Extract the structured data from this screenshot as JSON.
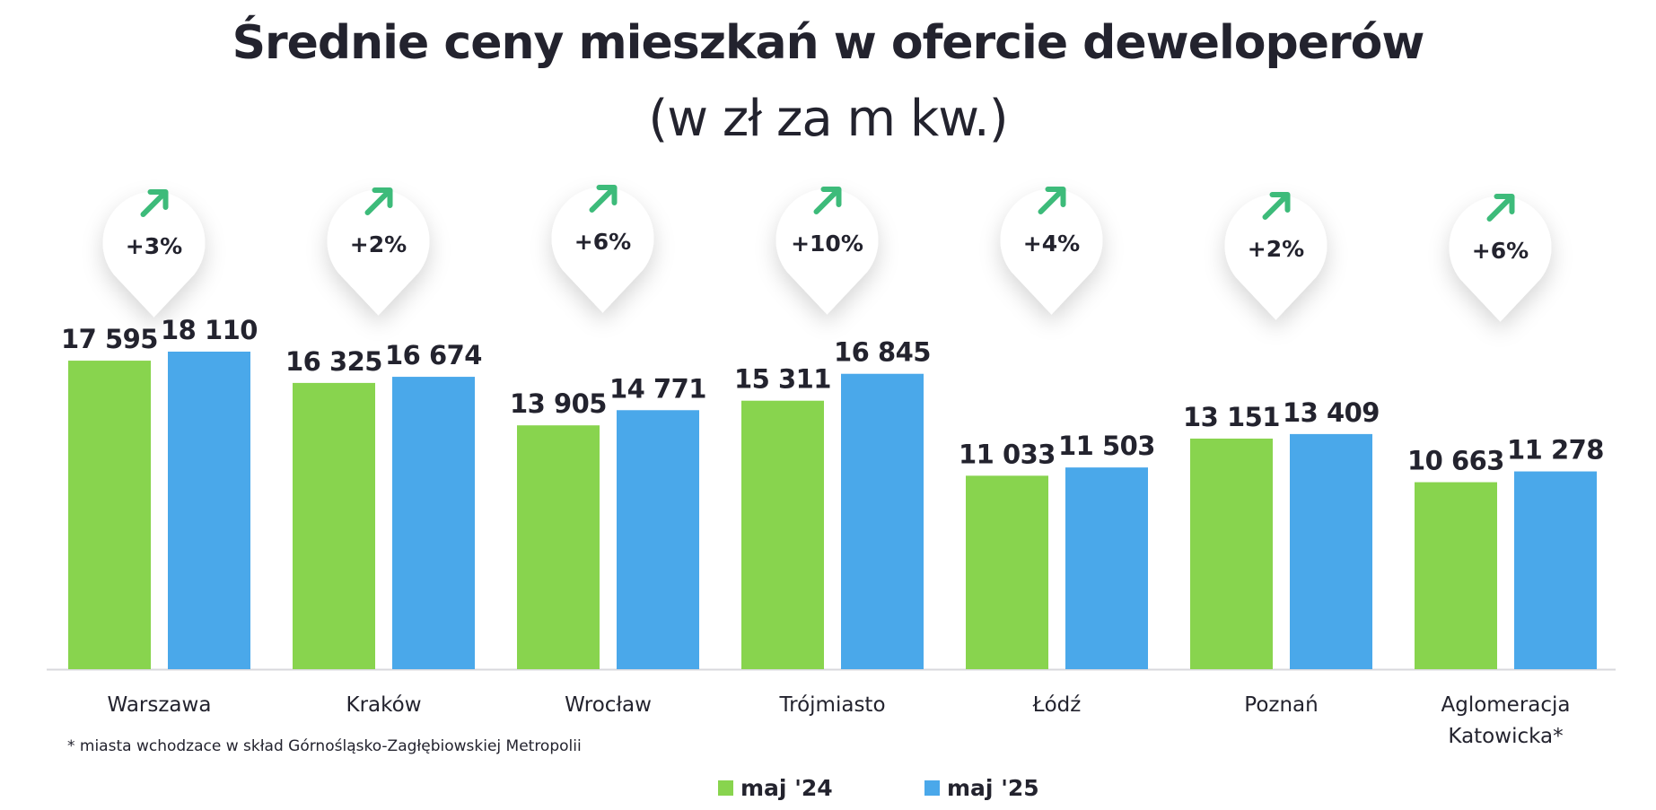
{
  "chart_data": {
    "type": "bar",
    "title": "Średnie ceny mieszkań w ofercie deweloperów",
    "subtitle": "(w zł za m kw.)",
    "categories": [
      "Warszawa",
      "Kraków",
      "Wrocław",
      "Trójmiasto",
      "Łódź",
      "Poznań",
      "Aglomeracja Katowicka*"
    ],
    "series": [
      {
        "name": "maj '24",
        "color": "#88d44e",
        "values": [
          17595,
          16325,
          13905,
          15311,
          11033,
          13151,
          10663
        ],
        "labels": [
          "17 595",
          "16 325",
          "13 905",
          "15 311",
          "11 033",
          "13 151",
          "10 663"
        ]
      },
      {
        "name": "maj '25",
        "color": "#4aa8ea",
        "values": [
          18110,
          16674,
          14771,
          16845,
          11503,
          13409,
          11278
        ],
        "labels": [
          "18 110",
          "16 674",
          "14 771",
          "16 845",
          "11 503",
          "13 409",
          "11 278"
        ]
      }
    ],
    "changes": [
      "+3%",
      "+2%",
      "+6%",
      "+10%",
      "+4%",
      "+2%",
      "+6%"
    ],
    "change_icon": "arrow-up-right-icon",
    "change_color": "#3dbb7a",
    "ylim": [
      0,
      18110
    ],
    "grid": false,
    "legend_position": "bottom-center"
  },
  "footnote": "* miasta wchodzace w skład Górnośląsko-Zagłębiowskiej Metropolii",
  "legend": [
    {
      "label": "maj '24",
      "color": "#88d44e"
    },
    {
      "label": "maj '25",
      "color": "#4aa8ea"
    }
  ]
}
